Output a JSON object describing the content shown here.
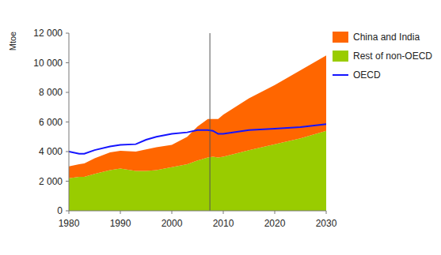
{
  "chart_data": {
    "type": "area",
    "stacked": true,
    "y_label": "Mtoe",
    "x": [
      1980,
      1982,
      1983,
      1985,
      1988,
      1990,
      1993,
      1995,
      1997,
      2000,
      2003,
      2005,
      2007,
      2008,
      2009,
      2010,
      2015,
      2020,
      2025,
      2030
    ],
    "series": [
      {
        "name": "Rest of non-OECD",
        "color": "#99cc00",
        "type": "area",
        "values": [
          2200,
          2300,
          2300,
          2500,
          2750,
          2850,
          2700,
          2700,
          2750,
          2950,
          3150,
          3400,
          3600,
          3650,
          3600,
          3650,
          4100,
          4500,
          4900,
          5400
        ]
      },
      {
        "name": "China and India",
        "color": "#ff6600",
        "type": "area",
        "values": [
          800,
          850,
          900,
          1050,
          1200,
          1200,
          1300,
          1450,
          1550,
          1500,
          1850,
          2300,
          2600,
          2550,
          2600,
          2850,
          3500,
          4000,
          4600,
          5100
        ]
      },
      {
        "name": "OECD",
        "color": "#1414ff",
        "type": "line",
        "values": [
          4000,
          3850,
          3850,
          4100,
          4350,
          4450,
          4500,
          4800,
          5000,
          5200,
          5300,
          5450,
          5450,
          5400,
          5200,
          5200,
          5450,
          5550,
          5650,
          5850
        ]
      }
    ],
    "vline_x": 2007.4,
    "xlim": [
      1980,
      2030
    ],
    "xticks": [
      1980,
      1990,
      2000,
      2010,
      2020,
      2030
    ],
    "ylim": [
      0,
      12000
    ],
    "yticks": [
      0,
      {
        "value": 2000,
        "label": "2 000"
      },
      {
        "value": 4000,
        "label": "4 000"
      },
      {
        "value": 6000,
        "label": "6 000"
      },
      {
        "value": 8000,
        "label": "8 000"
      },
      {
        "value": 10000,
        "label": "10 000"
      },
      {
        "value": 12000,
        "label": "12 000"
      }
    ],
    "grid": false,
    "legend": "top-right"
  }
}
